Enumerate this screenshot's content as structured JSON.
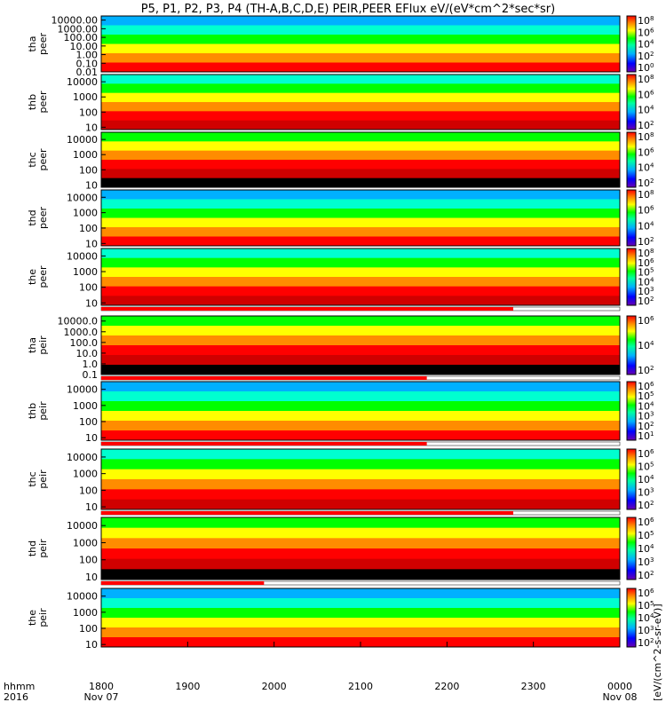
{
  "chart_data": {
    "type": "heatmap",
    "title": "P5, P1, P2, P3, P4 (TH-A,B,C,D,E) PEIR,PEER EFlux eV/(eV*cm^2*sec*sr)",
    "x_axis": {
      "corner_label": [
        "hhmm",
        "2016"
      ],
      "ticks": [
        "1800",
        "1900",
        "2000",
        "2100",
        "2200",
        "2300",
        "0000"
      ],
      "date_labels": [
        "Nov 07",
        "",
        "",
        "",
        "",
        "",
        "Nov 08"
      ],
      "range": [
        "2016-11-07 18:00",
        "2016-11-08 00:00"
      ]
    },
    "colorbar_units": "[eV/(cm^2-s-sr-eV)]",
    "log_scale": true,
    "panels": [
      {
        "probe": "tha",
        "species": "peer",
        "ylabels": [
          "10000.00",
          "1000.00",
          "100.00",
          "10.00",
          "1.00",
          "0.10",
          "0.01"
        ],
        "yrange": [
          0.01,
          30000
        ],
        "cbar_ticks": [
          "10^8",
          "10^6",
          "10^4",
          "10^2",
          "10^0"
        ],
        "quality_bar_end": null
      },
      {
        "probe": "thb",
        "species": "peer",
        "ylabels": [
          "10000",
          "1000",
          "100",
          "10"
        ],
        "yrange": [
          7,
          30000
        ],
        "cbar_ticks": [
          "10^8",
          "10^6",
          "10^4",
          "10^2"
        ],
        "quality_bar_end": null
      },
      {
        "probe": "thc",
        "species": "peer",
        "ylabels": [
          "10000",
          "1000",
          "100",
          "10"
        ],
        "yrange": [
          7,
          30000
        ],
        "cbar_ticks": [
          "10^8",
          "10^6",
          "10^4",
          "10^2"
        ],
        "quality_bar_end": null
      },
      {
        "probe": "thd",
        "species": "peer",
        "ylabels": [
          "10000",
          "1000",
          "100",
          "10"
        ],
        "yrange": [
          7,
          30000
        ],
        "cbar_ticks": [
          "10^8",
          "10^6",
          "10^4",
          "10^2"
        ],
        "quality_bar_end": null
      },
      {
        "probe": "the",
        "species": "peer",
        "ylabels": [
          "10000",
          "1000",
          "100",
          "10"
        ],
        "yrange": [
          7,
          30000
        ],
        "cbar_ticks": [
          "10^8",
          "10^6",
          "10^5",
          "10^4",
          "10^3",
          "10^2"
        ],
        "quality_bar_end": "22:46"
      },
      {
        "probe": "tha",
        "species": "peir",
        "ylabels": [
          "10000.0",
          "1000.0",
          "100.0",
          "10.0",
          "1.0",
          "0.1"
        ],
        "yrange": [
          0.1,
          30000
        ],
        "cbar_ticks": [
          "10^6",
          "10^4",
          "10^2"
        ],
        "quality_bar_end": "21:46"
      },
      {
        "probe": "thb",
        "species": "peir",
        "ylabels": [
          "10000",
          "1000",
          "100",
          "10"
        ],
        "yrange": [
          7,
          30000
        ],
        "cbar_ticks": [
          "10^6",
          "10^5",
          "10^4",
          "10^3",
          "10^2",
          "10^1"
        ],
        "quality_bar_end": "21:46"
      },
      {
        "probe": "thc",
        "species": "peir",
        "ylabels": [
          "10000",
          "1000",
          "100",
          "10"
        ],
        "yrange": [
          7,
          30000
        ],
        "cbar_ticks": [
          "10^6",
          "10^5",
          "10^4",
          "10^3",
          "10^2"
        ],
        "quality_bar_end": "22:46"
      },
      {
        "probe": "thd",
        "species": "peir",
        "ylabels": [
          "10000",
          "1000",
          "100",
          "10"
        ],
        "yrange": [
          7,
          30000
        ],
        "cbar_ticks": [
          "10^6",
          "10^5",
          "10^4",
          "10^3",
          "10^2"
        ],
        "quality_bar_end": "19:53"
      },
      {
        "probe": "the",
        "species": "peir",
        "ylabels": [
          "10000",
          "1000",
          "100",
          "10"
        ],
        "yrange": [
          7,
          30000
        ],
        "cbar_ticks": [
          "10^6",
          "10^5",
          "10^4",
          "10^3",
          "10^2"
        ],
        "quality_bar_end": null
      }
    ],
    "colors": {
      "spectrogram": [
        "#000000",
        "#6a00b0",
        "#0000ff",
        "#00b0ff",
        "#00ffd0",
        "#00ff00",
        "#ffff00",
        "#ff8c00",
        "#ff0000",
        "#d00000"
      ],
      "quality_bar": "#ff0000"
    }
  }
}
